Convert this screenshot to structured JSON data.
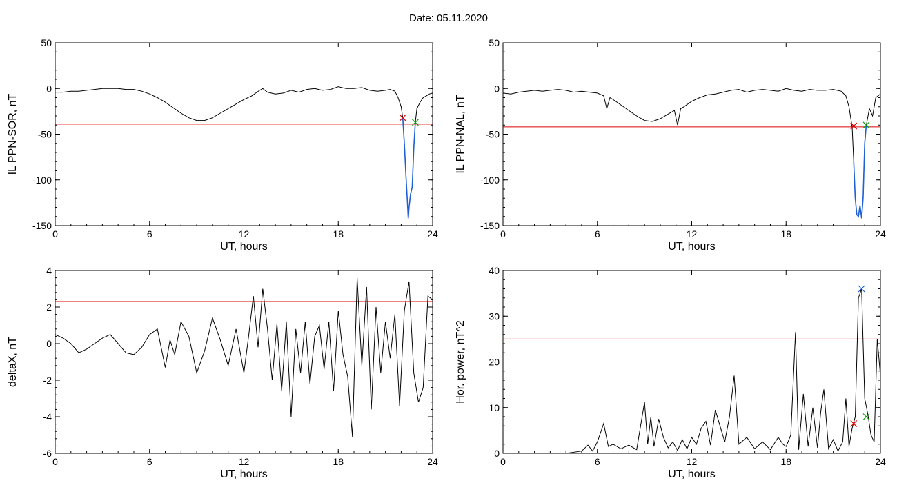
{
  "header": {
    "date_label": "Date:  05.11.2020"
  },
  "colors": {
    "threshold": "#dd0000",
    "highlight": "#1f5fd8",
    "start_marker": "#dd0000",
    "end_marker": "#00a000",
    "peak_marker": "#1f5fd8",
    "trace": "#000000"
  },
  "chart_data": [
    {
      "id": "sor",
      "type": "line",
      "title": "",
      "xlabel": "UT, hours",
      "ylabel": "IL PPN-SOR, nT",
      "xlim": [
        0,
        24
      ],
      "ylim": [
        -150,
        50
      ],
      "xticks": [
        0,
        6,
        12,
        18,
        24
      ],
      "yticks": [
        -150,
        -100,
        -50,
        0,
        50
      ],
      "threshold": -39,
      "markers": [
        {
          "kind": "start",
          "x": 22.1,
          "y": -32
        },
        {
          "kind": "end",
          "x": 22.9,
          "y": -37
        }
      ],
      "highlight_range": [
        22.1,
        22.9
      ],
      "series": [
        {
          "x": [
            0,
            0.5,
            1,
            1.5,
            2,
            2.5,
            3,
            3.5,
            4,
            4.5,
            5,
            5.5,
            6,
            6.5,
            7,
            7.5,
            8,
            8.5,
            9,
            9.5,
            10,
            10.5,
            11,
            11.5,
            12,
            12.5,
            13,
            13.2,
            13.5,
            14,
            14.5,
            15,
            15.5,
            16,
            16.5,
            17,
            17.5,
            18,
            18.5,
            19,
            19.5,
            20,
            20.5,
            21,
            21.3,
            21.6,
            21.8,
            22,
            22.1,
            22.2,
            22.3,
            22.4,
            22.45,
            22.5,
            22.6,
            22.7,
            22.8,
            22.9,
            23,
            23.2,
            23.4,
            23.6,
            23.8,
            24
          ],
          "values": [
            -4,
            -4,
            -3,
            -3,
            -2,
            -1,
            0,
            0,
            0,
            -1,
            -1,
            -3,
            -6,
            -10,
            -15,
            -21,
            -27,
            -32,
            -35,
            -35,
            -32,
            -27,
            -22,
            -17,
            -12,
            -8,
            -2,
            0,
            -4,
            -6,
            -5,
            -2,
            -4,
            -1,
            0,
            -2,
            -1,
            2,
            0,
            0,
            1,
            -2,
            -3,
            -2,
            -1,
            -3,
            -10,
            -20,
            -32,
            -60,
            -95,
            -125,
            -142,
            -130,
            -115,
            -108,
            -65,
            -37,
            -22,
            -15,
            -10,
            -8,
            -6,
            -5
          ]
        }
      ]
    },
    {
      "id": "nal",
      "type": "line",
      "title": "",
      "xlabel": "UT, hours",
      "ylabel": "IL PPN-NAL, nT",
      "xlim": [
        0,
        24
      ],
      "ylim": [
        -150,
        50
      ],
      "xticks": [
        0,
        6,
        12,
        18,
        24
      ],
      "yticks": [
        -150,
        -100,
        -50,
        0,
        50
      ],
      "threshold": -42,
      "markers": [
        {
          "kind": "start",
          "x": 22.3,
          "y": -41
        },
        {
          "kind": "end",
          "x": 23.1,
          "y": -40
        }
      ],
      "highlight_range": [
        22.3,
        23.1
      ],
      "series": [
        {
          "x": [
            0,
            0.5,
            1,
            1.5,
            2,
            2.5,
            3,
            3.5,
            4,
            4.5,
            5,
            5.5,
            6,
            6.4,
            6.6,
            6.8,
            7,
            7.5,
            8,
            8.5,
            9,
            9.5,
            10,
            10.5,
            10.9,
            11.1,
            11.3,
            11.5,
            12,
            12.5,
            13,
            13.5,
            14,
            14.5,
            15,
            15.5,
            16,
            16.5,
            17,
            17.5,
            18,
            18.5,
            19,
            19.5,
            20,
            20.5,
            21,
            21.5,
            21.8,
            22,
            22.2,
            22.3,
            22.4,
            22.5,
            22.6,
            22.7,
            22.8,
            22.9,
            23,
            23.1,
            23.3,
            23.5,
            23.7,
            24
          ],
          "values": [
            -5,
            -6,
            -4,
            -3,
            -2,
            -3,
            -2,
            -1,
            -2,
            -4,
            -3,
            -4,
            -5,
            -8,
            -22,
            -10,
            -12,
            -18,
            -24,
            -30,
            -35,
            -36,
            -33,
            -28,
            -24,
            -40,
            -22,
            -20,
            -14,
            -10,
            -7,
            -6,
            -4,
            -2,
            -1,
            -4,
            -2,
            -1,
            -2,
            -3,
            0,
            -2,
            -3,
            -1,
            -2,
            -2,
            -1,
            -3,
            -8,
            -20,
            -42,
            -80,
            -120,
            -138,
            -140,
            -128,
            -142,
            -120,
            -60,
            -40,
            -22,
            -30,
            -10,
            -6
          ]
        }
      ]
    },
    {
      "id": "deltax",
      "type": "line",
      "title": "",
      "xlabel": "UT, hours",
      "ylabel": "deltaX, nT",
      "xlim": [
        0,
        24
      ],
      "ylim": [
        -6,
        4
      ],
      "xticks": [
        0,
        6,
        12,
        18,
        24
      ],
      "yticks": [
        -6,
        -4,
        -2,
        0,
        2,
        4
      ],
      "threshold": 2.3,
      "markers": [],
      "series": [
        {
          "x": [
            0,
            0.5,
            1,
            1.5,
            2,
            2.5,
            3,
            3.5,
            4,
            4.5,
            5,
            5.5,
            6,
            6.5,
            7,
            7.3,
            7.6,
            8,
            8.5,
            9,
            9.5,
            10,
            10.5,
            11,
            11.5,
            12,
            12.3,
            12.6,
            12.9,
            13.2,
            13.5,
            13.8,
            14.1,
            14.4,
            14.7,
            15,
            15.3,
            15.6,
            15.9,
            16.2,
            16.5,
            16.8,
            17.1,
            17.4,
            17.7,
            18,
            18.3,
            18.6,
            18.9,
            19.2,
            19.5,
            19.8,
            20.1,
            20.4,
            20.7,
            21,
            21.3,
            21.6,
            21.9,
            22.2,
            22.5,
            22.8,
            23.1,
            23.4,
            23.7,
            24
          ],
          "values": [
            0.5,
            0.3,
            0,
            -0.5,
            -0.3,
            0,
            0.3,
            0.5,
            0,
            -0.5,
            -0.6,
            -0.2,
            0.5,
            0.8,
            -1.3,
            0.2,
            -0.6,
            1.2,
            0.4,
            -1.6,
            -0.4,
            1.4,
            0.2,
            -1.2,
            0.8,
            -1.6,
            0.4,
            2.6,
            -0.2,
            3.0,
            0.8,
            -2.0,
            1.1,
            -2.6,
            1.2,
            -4.0,
            0.8,
            -1.6,
            1.2,
            -2.2,
            0.4,
            1.0,
            -1.4,
            1.2,
            -2.6,
            1.8,
            -0.6,
            -1.8,
            -5.1,
            3.6,
            -1.2,
            3.1,
            -3.6,
            2.0,
            -1.6,
            1.2,
            -0.8,
            1.6,
            -3.4,
            1.8,
            3.4,
            -1.6,
            -3.2,
            -2.4,
            2.6,
            2.4
          ]
        }
      ]
    },
    {
      "id": "power",
      "type": "line",
      "title": "",
      "xlabel": "UT, hours",
      "ylabel": "Hor. power, nT^2",
      "xlim": [
        0,
        24
      ],
      "ylim": [
        0,
        40
      ],
      "xticks": [
        0,
        6,
        12,
        18,
        24
      ],
      "yticks": [
        0,
        10,
        20,
        30,
        40
      ],
      "threshold": 25,
      "markers": [
        {
          "kind": "start",
          "x": 22.3,
          "y": 6.5
        },
        {
          "kind": "peak",
          "x": 22.8,
          "y": 36
        },
        {
          "kind": "end",
          "x": 23.1,
          "y": 8
        }
      ],
      "series": [
        {
          "x": [
            0,
            1,
            2,
            3,
            4,
            5,
            5.4,
            5.7,
            6,
            6.4,
            6.7,
            7,
            7.5,
            8,
            8.5,
            9,
            9.2,
            9.4,
            9.6,
            9.9,
            10.2,
            10.5,
            10.8,
            11.1,
            11.4,
            11.7,
            12,
            12.3,
            12.6,
            12.9,
            13.2,
            13.5,
            13.8,
            14.1,
            14.4,
            14.7,
            15,
            15.5,
            16,
            16.5,
            17,
            17.5,
            17.8,
            18,
            18.3,
            18.6,
            18.8,
            19.1,
            19.4,
            19.7,
            20,
            20.2,
            20.4,
            20.7,
            21,
            21.3,
            21.6,
            21.8,
            22,
            22.2,
            22.4,
            22.6,
            22.8,
            23,
            23.2,
            23.4,
            23.6,
            23.8,
            24
          ],
          "values": [
            0,
            0,
            0,
            0,
            0,
            0.5,
            1.8,
            0.5,
            2.5,
            6.5,
            1.5,
            2.0,
            1.0,
            1.8,
            0.8,
            11.2,
            2.0,
            8.0,
            1.5,
            7.5,
            3.5,
            1.2,
            2.5,
            0.6,
            3.0,
            1.0,
            3.5,
            2.0,
            5.5,
            7.0,
            1.8,
            9.5,
            6.0,
            2.5,
            8.0,
            17.0,
            2.0,
            3.5,
            1.0,
            2.5,
            0.8,
            3.5,
            2.0,
            1.5,
            4.0,
            26.5,
            0.8,
            13.0,
            1.5,
            10.0,
            1.2,
            9.0,
            14.0,
            1.0,
            3.0,
            0.5,
            2.5,
            12.0,
            1.5,
            5.5,
            8.0,
            34.0,
            36.0,
            12.0,
            8.5,
            4.0,
            2.5,
            25.0,
            17.0
          ]
        }
      ]
    }
  ]
}
